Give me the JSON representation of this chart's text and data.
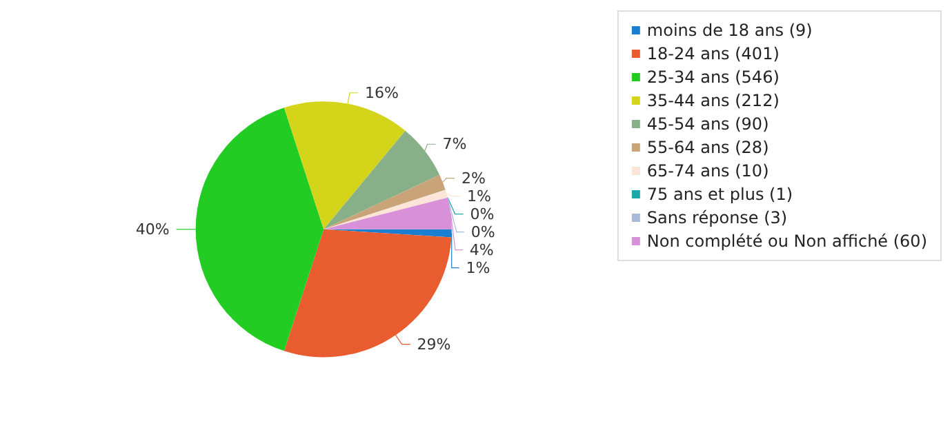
{
  "chart_data": {
    "type": "pie",
    "categories": [
      "moins de 18 ans (9)",
      "18-24 ans (401)",
      "25-34 ans (546)",
      "35-44 ans (212)",
      "45-54 ans (90)",
      "55-64 ans (28)",
      "65-74 ans (10)",
      "75 ans et plus (1)",
      "Sans réponse (3)",
      "Non complété ou Non affiché (60)"
    ],
    "values": [
      1,
      29,
      40,
      16,
      7,
      2,
      1,
      0,
      0,
      4
    ],
    "value_labels": [
      "1%",
      "29%",
      "40%",
      "16%",
      "7%",
      "2%",
      "1%",
      "0%",
      "0%",
      "4%"
    ],
    "colors": [
      "#1a7fd0",
      "#e85c30",
      "#22cc22",
      "#d4d41a",
      "#88b088",
      "#c8a478",
      "#fbe4d8",
      "#1aa8a8",
      "#a8b8d8",
      "#d890d8"
    ],
    "legend": "right"
  }
}
